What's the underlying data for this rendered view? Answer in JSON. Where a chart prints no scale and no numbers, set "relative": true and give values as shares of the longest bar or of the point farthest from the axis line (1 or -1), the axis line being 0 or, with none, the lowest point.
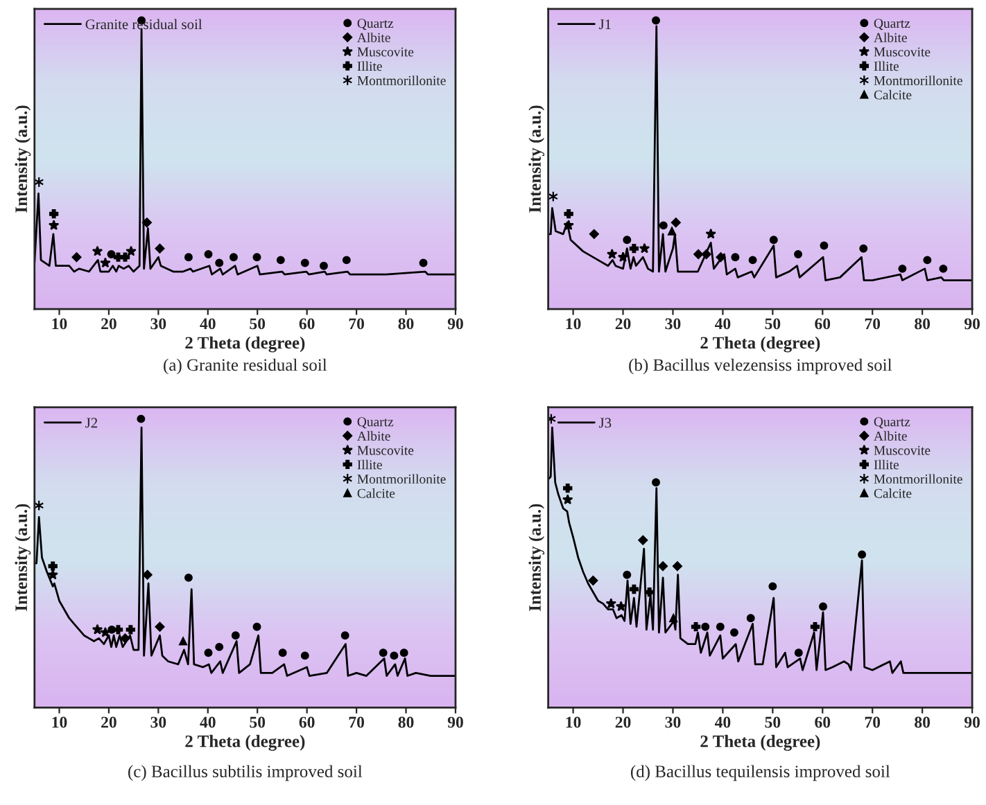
{
  "chart_data": [
    {
      "type": "line",
      "title": "(a) Granite residual soil",
      "xlabel": "2 Theta (degree)",
      "ylabel": "Intensity (a.u.)",
      "relative": true,
      "xlim": [
        5,
        90
      ],
      "xticks": [
        10,
        20,
        30,
        40,
        50,
        60,
        70,
        80,
        90
      ],
      "legend": "top right",
      "grid": false,
      "series": [
        {
          "name": "Granite residual soil",
          "color": "#000000",
          "x": [
            5,
            5.8,
            6.3,
            8,
            8.8,
            9.3,
            12,
            13,
            14,
            16,
            17.8,
            18.3,
            20,
            20.8,
            21.5,
            22,
            23,
            24,
            25,
            26.2,
            26.6,
            27.1,
            27.9,
            28.4,
            30,
            30.5,
            33,
            35,
            36.5,
            37,
            40.3,
            40.8,
            42.5,
            43,
            45.5,
            46,
            50,
            50.5,
            55,
            55.5,
            59.9,
            60.4,
            63.6,
            64,
            68.2,
            68.7,
            76,
            83.9,
            84.4,
            90
          ],
          "values": [
            0.16,
            0.4,
            0.17,
            0.15,
            0.26,
            0.15,
            0.15,
            0.13,
            0.14,
            0.13,
            0.17,
            0.13,
            0.13,
            0.15,
            0.13,
            0.15,
            0.14,
            0.15,
            0.13,
            0.15,
            0.97,
            0.14,
            0.28,
            0.14,
            0.18,
            0.15,
            0.13,
            0.13,
            0.14,
            0.13,
            0.15,
            0.12,
            0.14,
            0.12,
            0.15,
            0.12,
            0.15,
            0.12,
            0.13,
            0.12,
            0.13,
            0.12,
            0.13,
            0.12,
            0.13,
            0.12,
            0.12,
            0.13,
            0.12,
            0.12
          ]
        },
        {
          "type": "scatter",
          "name": "Quartz",
          "marker": "circle",
          "color": "#000000",
          "x": [
            20.5,
            26.6,
            36.1,
            40.1,
            42.3,
            45.2,
            49.9,
            54.7,
            59.6,
            63.4,
            68.0,
            83.5
          ],
          "values": [
            0.19,
            1.0,
            0.18,
            0.19,
            0.16,
            0.18,
            0.18,
            0.17,
            0.16,
            0.15,
            0.17,
            0.16
          ]
        },
        {
          "type": "scatter",
          "name": "Albite",
          "marker": "diamond",
          "color": "#000000",
          "x": [
            13.5,
            27.7,
            30.3
          ],
          "values": [
            0.18,
            0.3,
            0.21
          ]
        },
        {
          "type": "scatter",
          "name": "Muscovite",
          "marker": "star",
          "color": "#000000",
          "x": [
            8.9,
            17.7,
            19.3,
            24.5
          ],
          "values": [
            0.29,
            0.2,
            0.16,
            0.2
          ]
        },
        {
          "type": "scatter",
          "name": "Illite",
          "marker": "cross",
          "color": "#000000",
          "x": [
            8.9,
            21.9,
            23.3
          ],
          "values": [
            0.33,
            0.18,
            0.18
          ]
        },
        {
          "type": "scatter",
          "name": "Montmorillonite",
          "color": "#000000",
          "x": [
            5.9
          ],
          "values": [
            0.44
          ]
        }
      ]
    },
    {
      "type": "line",
      "title": "(b) Bacillus velezensiss improved soil",
      "xlabel": "2 Theta (degree)",
      "ylabel": "Intensity (a.u.)",
      "relative": true,
      "xlim": [
        5,
        90
      ],
      "xticks": [
        10,
        20,
        30,
        40,
        50,
        60,
        70,
        80,
        90
      ],
      "legend": "top right",
      "grid": false,
      "series": [
        {
          "name": "J1",
          "color": "#000000",
          "x": [
            5,
            5.5,
            5.8,
            6.5,
            8,
            8.8,
            9.5,
            12,
            15,
            17,
            17.9,
            18.5,
            20,
            20.8,
            21.5,
            22.1,
            22.6,
            24,
            25,
            26,
            26.7,
            27.2,
            28,
            28.5,
            30,
            30.4,
            31,
            33,
            35,
            37.6,
            38.2,
            40.3,
            40.8,
            42.5,
            43,
            45.8,
            46.3,
            50.2,
            50.7,
            53.3,
            54.9,
            55.4,
            60.1,
            60.6,
            63.5,
            67.8,
            68.3,
            70,
            75.6,
            76,
            80.5,
            81,
            83.8,
            84.3,
            90
          ],
          "values": [
            0.26,
            0.26,
            0.35,
            0.27,
            0.26,
            0.3,
            0.24,
            0.2,
            0.17,
            0.15,
            0.17,
            0.15,
            0.14,
            0.21,
            0.14,
            0.18,
            0.15,
            0.18,
            0.14,
            0.13,
            0.98,
            0.13,
            0.26,
            0.13,
            0.21,
            0.26,
            0.13,
            0.13,
            0.13,
            0.23,
            0.14,
            0.19,
            0.12,
            0.14,
            0.11,
            0.13,
            0.11,
            0.22,
            0.11,
            0.13,
            0.15,
            0.11,
            0.18,
            0.1,
            0.11,
            0.18,
            0.1,
            0.1,
            0.12,
            0.1,
            0.14,
            0.1,
            0.11,
            0.1,
            0.1
          ]
        },
        {
          "type": "scatter",
          "name": "Quartz",
          "marker": "circle",
          "color": "#000000",
          "x": [
            20.8,
            26.6,
            28.1,
            42.5,
            46.0,
            50.2,
            55.1,
            60.3,
            68.2,
            76.0,
            81.0,
            84.2
          ],
          "values": [
            0.24,
            1.0,
            0.29,
            0.18,
            0.17,
            0.24,
            0.19,
            0.22,
            0.21,
            0.14,
            0.17,
            0.14
          ]
        },
        {
          "type": "scatter",
          "name": "Albite",
          "marker": "diamond",
          "color": "#000000",
          "x": [
            14.2,
            30.6,
            35.1,
            36.7,
            39.6
          ],
          "values": [
            0.26,
            0.3,
            0.19,
            0.19,
            0.18
          ]
        },
        {
          "type": "scatter",
          "name": "Muscovite",
          "marker": "star",
          "color": "#000000",
          "x": [
            9.1,
            17.8,
            20.0,
            24.3,
            37.6
          ],
          "values": [
            0.29,
            0.19,
            0.18,
            0.21,
            0.26
          ]
        },
        {
          "type": "scatter",
          "name": "Illite",
          "marker": "cross",
          "color": "#000000",
          "x": [
            9.1,
            22.2
          ],
          "values": [
            0.33,
            0.21
          ]
        },
        {
          "type": "scatter",
          "name": "Montmorillonite",
          "color": "#000000",
          "x": [
            6.0
          ],
          "values": [
            0.39
          ]
        },
        {
          "type": "scatter",
          "name": "Calcite",
          "marker": "triangle",
          "color": "#000000",
          "x": [
            29.8
          ],
          "values": [
            0.27
          ]
        }
      ]
    },
    {
      "type": "line",
      "title": "(c) Bacillus subtilis improved soil",
      "xlabel": "2 Theta (degree)",
      "ylabel": "Intensity (a.u.)",
      "relative": true,
      "xlim": [
        5,
        90
      ],
      "xticks": [
        10,
        20,
        30,
        40,
        50,
        60,
        70,
        80,
        90
      ],
      "legend": "top right",
      "grid": false,
      "series": [
        {
          "name": "J2",
          "color": "#000000",
          "x": [
            5,
            5.4,
            5.9,
            6.5,
            7.5,
            8.7,
            9,
            10,
            11,
            12,
            13,
            14,
            15,
            16,
            17,
            18,
            19,
            20,
            20.5,
            21,
            21.5,
            22.2,
            22.8,
            24.3,
            25,
            26,
            26.6,
            27.1,
            28,
            28.6,
            30.3,
            30.8,
            32,
            34,
            35.2,
            36,
            36.7,
            37.2,
            39,
            40.2,
            40.7,
            42.5,
            43,
            45.8,
            46.3,
            48.5,
            50.2,
            50.7,
            53,
            55.4,
            56,
            60,
            60.5,
            64,
            67.8,
            68.3,
            70,
            72,
            75.6,
            76.1,
            77.8,
            78.3,
            79.8,
            80.3,
            82,
            85,
            90
          ],
          "values": [
            0.5,
            0.5,
            0.66,
            0.52,
            0.47,
            0.42,
            0.43,
            0.37,
            0.34,
            0.31,
            0.29,
            0.27,
            0.25,
            0.24,
            0.23,
            0.24,
            0.22,
            0.25,
            0.21,
            0.25,
            0.21,
            0.25,
            0.21,
            0.25,
            0.2,
            0.2,
            0.97,
            0.18,
            0.43,
            0.18,
            0.25,
            0.18,
            0.16,
            0.15,
            0.2,
            0.15,
            0.41,
            0.15,
            0.14,
            0.15,
            0.12,
            0.16,
            0.12,
            0.23,
            0.12,
            0.15,
            0.25,
            0.12,
            0.12,
            0.15,
            0.11,
            0.14,
            0.11,
            0.12,
            0.22,
            0.11,
            0.12,
            0.11,
            0.17,
            0.11,
            0.15,
            0.11,
            0.17,
            0.11,
            0.12,
            0.11,
            0.11
          ]
        },
        {
          "type": "scatter",
          "name": "Quartz",
          "marker": "circle",
          "color": "#000000",
          "x": [
            20.6,
            26.5,
            36.1,
            40.1,
            42.3,
            45.6,
            49.9,
            55.1,
            59.6,
            67.7,
            75.4,
            77.6,
            79.6
          ],
          "values": [
            0.27,
            1.0,
            0.45,
            0.19,
            0.21,
            0.25,
            0.28,
            0.19,
            0.18,
            0.25,
            0.19,
            0.18,
            0.19
          ]
        },
        {
          "type": "scatter",
          "name": "Albite",
          "marker": "diamond",
          "color": "#000000",
          "x": [
            23.3,
            27.8,
            30.3
          ],
          "values": [
            0.24,
            0.46,
            0.28
          ]
        },
        {
          "type": "scatter",
          "name": "Muscovite",
          "marker": "star",
          "color": "#000000",
          "x": [
            8.7,
            17.7,
            19.3
          ],
          "values": [
            0.46,
            0.27,
            0.26
          ]
        },
        {
          "type": "scatter",
          "name": "Illite",
          "marker": "cross",
          "color": "#000000",
          "x": [
            8.7,
            21.9,
            24.4
          ],
          "values": [
            0.49,
            0.27,
            0.27
          ]
        },
        {
          "type": "scatter",
          "name": "Montmorillonite",
          "color": "#000000",
          "x": [
            5.9
          ],
          "values": [
            0.7
          ]
        },
        {
          "type": "scatter",
          "name": "Calcite",
          "marker": "triangle",
          "color": "#000000",
          "x": [
            35.0
          ],
          "values": [
            0.23
          ]
        }
      ]
    },
    {
      "type": "line",
      "title": "(d) Bacillus tequilensis improved soil",
      "xlabel": "2 Theta (degree)",
      "ylabel": "Intensity (a.u.)",
      "relative": true,
      "xlim": [
        5,
        90
      ],
      "xticks": [
        10,
        20,
        30,
        40,
        50,
        60,
        70,
        80,
        90
      ],
      "legend": "top right",
      "grid": false,
      "series": [
        {
          "name": "J3",
          "color": "#000000",
          "x": [
            5,
            5.5,
            5.8,
            6.4,
            7,
            8,
            8.8,
            9.2,
            10,
            11,
            12,
            13,
            14,
            15,
            16,
            17,
            18,
            18.7,
            19.7,
            20.3,
            20.9,
            21.5,
            22.2,
            22.7,
            24.2,
            24.7,
            25.5,
            26,
            26.7,
            27.2,
            28,
            28.5,
            30.2,
            30.5,
            31,
            31.5,
            33,
            34.5,
            35,
            35.6,
            36.9,
            37.4,
            39.5,
            40,
            42.6,
            43.1,
            46,
            46.5,
            48,
            50.2,
            50.7,
            52.5,
            53,
            55.5,
            56,
            58.3,
            58.8,
            60.1,
            60.6,
            62,
            64.3,
            65.2,
            65.7,
            67.9,
            68.4,
            70,
            73.5,
            74,
            75.7,
            76.2,
            80,
            85,
            90
          ],
          "values": [
            0.79,
            0.8,
            0.97,
            0.78,
            0.74,
            0.69,
            0.68,
            0.64,
            0.59,
            0.52,
            0.47,
            0.43,
            0.4,
            0.37,
            0.36,
            0.34,
            0.34,
            0.31,
            0.32,
            0.3,
            0.44,
            0.29,
            0.38,
            0.28,
            0.55,
            0.27,
            0.39,
            0.27,
            0.76,
            0.26,
            0.45,
            0.26,
            0.3,
            0.27,
            0.46,
            0.24,
            0.22,
            0.22,
            0.26,
            0.19,
            0.26,
            0.18,
            0.25,
            0.17,
            0.22,
            0.16,
            0.29,
            0.15,
            0.15,
            0.38,
            0.14,
            0.19,
            0.14,
            0.17,
            0.13,
            0.26,
            0.13,
            0.33,
            0.13,
            0.14,
            0.16,
            0.15,
            0.13,
            0.51,
            0.14,
            0.13,
            0.16,
            0.12,
            0.16,
            0.12,
            0.12,
            0.12,
            0.12
          ]
        },
        {
          "type": "scatter",
          "name": "Quartz",
          "marker": "circle",
          "color": "#000000",
          "x": [
            20.8,
            26.6,
            36.5,
            39.5,
            42.3,
            45.6,
            50.0,
            55.2,
            60.1,
            67.9
          ],
          "values": [
            0.46,
            0.78,
            0.28,
            0.28,
            0.26,
            0.31,
            0.42,
            0.19,
            0.35,
            0.53
          ]
        },
        {
          "type": "scatter",
          "name": "Albite",
          "marker": "diamond",
          "color": "#000000",
          "x": [
            14.0,
            24.0,
            28.0,
            30.9
          ],
          "values": [
            0.44,
            0.58,
            0.49,
            0.49
          ]
        },
        {
          "type": "scatter",
          "name": "Muscovite",
          "marker": "star",
          "color": "#000000",
          "x": [
            8.9,
            17.6,
            19.6
          ],
          "values": [
            0.72,
            0.36,
            0.35
          ]
        },
        {
          "type": "scatter",
          "name": "Illite",
          "marker": "cross",
          "color": "#000000",
          "x": [
            8.9,
            22.2,
            25.3,
            34.6,
            58.5
          ],
          "values": [
            0.76,
            0.41,
            0.4,
            0.28,
            0.28
          ]
        },
        {
          "type": "scatter",
          "name": "Montmorillonite",
          "color": "#000000",
          "x": [
            5.6
          ],
          "values": [
            1.0
          ]
        },
        {
          "type": "scatter",
          "name": "Calcite",
          "marker": "triangle",
          "color": "#000000",
          "x": [
            30.1
          ],
          "values": [
            0.31
          ]
        }
      ]
    }
  ]
}
